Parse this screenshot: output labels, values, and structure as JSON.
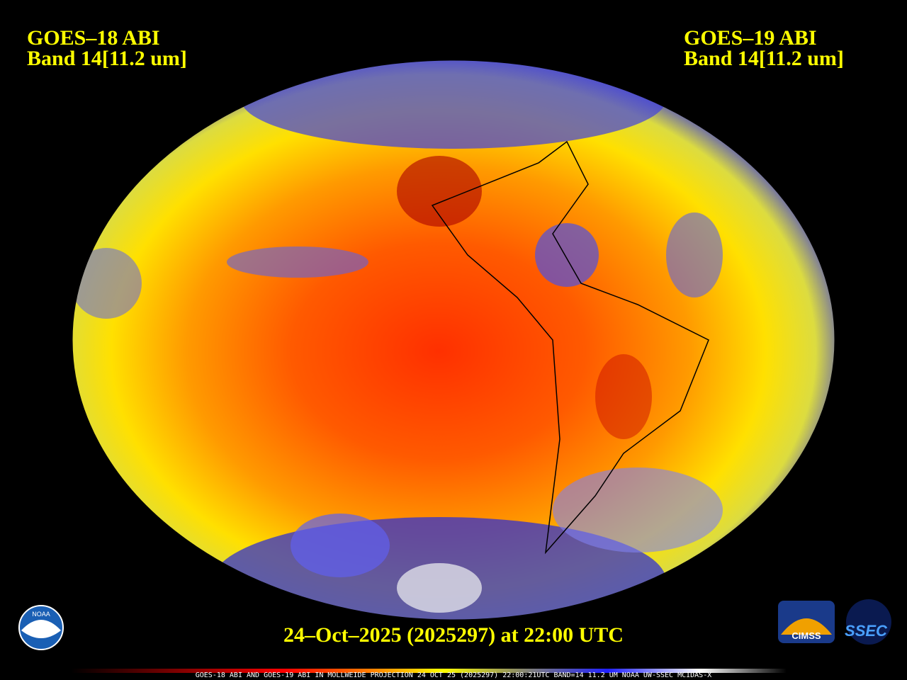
{
  "header": {
    "left": {
      "line1": "GOES–18 ABI",
      "line2": "Band 14[11.2 um]"
    },
    "right": {
      "line1": "GOES–19 ABI",
      "line2": "Band 14[11.2 um]"
    }
  },
  "timestamp": "24–Oct–2025 (2025297) at 22:00 UTC",
  "footer": "GOES-18 ABI AND GOES-19 ABI IN MOLLWEIDE PROJECTION 24 OCT 25 (2025297) 22:00:21UTC BAND=14 11.2 UM NOAA UW-SSEC MCIDAS-X",
  "logos": {
    "noaa": "NOAA",
    "cimss": "CIMSS",
    "ssec": "SSEC"
  }
}
